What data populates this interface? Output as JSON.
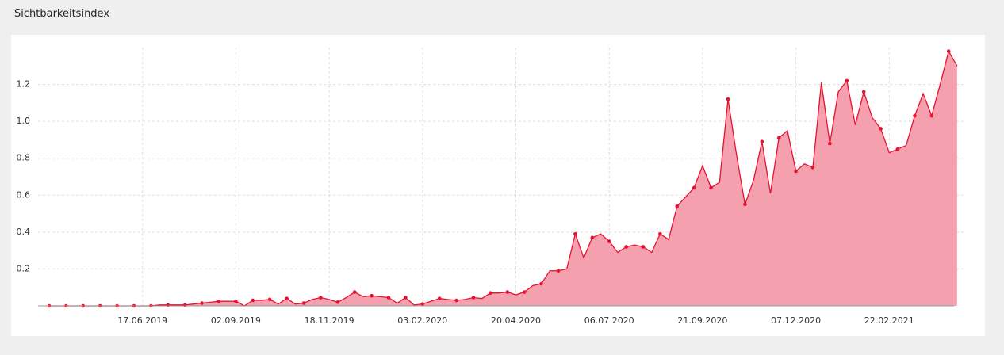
{
  "chart_data": {
    "type": "area",
    "title": "Sichtbarkeitsindex",
    "x": [
      "01.04.2019",
      "08.04.2019",
      "15.04.2019",
      "22.04.2019",
      "29.04.2019",
      "06.05.2019",
      "13.05.2019",
      "20.05.2019",
      "27.05.2019",
      "03.06.2019",
      "10.06.2019",
      "17.06.2019",
      "24.06.2019",
      "01.07.2019",
      "08.07.2019",
      "15.07.2019",
      "22.07.2019",
      "29.07.2019",
      "05.08.2019",
      "12.08.2019",
      "19.08.2019",
      "26.08.2019",
      "02.09.2019",
      "09.09.2019",
      "16.09.2019",
      "23.09.2019",
      "30.09.2019",
      "07.10.2019",
      "14.10.2019",
      "21.10.2019",
      "28.10.2019",
      "04.11.2019",
      "11.11.2019",
      "18.11.2019",
      "25.11.2019",
      "02.12.2019",
      "09.12.2019",
      "16.12.2019",
      "23.12.2019",
      "30.12.2019",
      "06.01.2020",
      "13.01.2020",
      "20.01.2020",
      "27.01.2020",
      "03.02.2020",
      "10.02.2020",
      "17.02.2020",
      "24.02.2020",
      "02.03.2020",
      "09.03.2020",
      "16.03.2020",
      "23.03.2020",
      "30.03.2020",
      "06.04.2020",
      "13.04.2020",
      "20.04.2020",
      "27.04.2020",
      "04.05.2020",
      "11.05.2020",
      "18.05.2020",
      "25.05.2020",
      "01.06.2020",
      "08.06.2020",
      "15.06.2020",
      "22.06.2020",
      "29.06.2020",
      "06.07.2020",
      "13.07.2020",
      "20.07.2020",
      "27.07.2020",
      "03.08.2020",
      "10.08.2020",
      "17.08.2020",
      "24.08.2020",
      "31.08.2020",
      "07.09.2020",
      "14.09.2020",
      "21.09.2020",
      "28.09.2020",
      "05.10.2020",
      "12.10.2020",
      "19.10.2020",
      "26.10.2020",
      "02.11.2020",
      "09.11.2020",
      "16.11.2020",
      "23.11.2020",
      "30.11.2020",
      "07.12.2020",
      "14.12.2020",
      "21.12.2020",
      "28.12.2020",
      "04.01.2021",
      "11.01.2021",
      "18.01.2021",
      "25.01.2021",
      "01.02.2021",
      "08.02.2021",
      "15.02.2021",
      "22.02.2021",
      "01.03.2021",
      "08.03.2021",
      "15.03.2021",
      "22.03.2021",
      "29.03.2021",
      "05.04.2021",
      "12.04.2021",
      "19.04.2021"
    ],
    "values": [
      0,
      0,
      0,
      0,
      0,
      0,
      0,
      0,
      0,
      0,
      0,
      0,
      0,
      0.005,
      0.005,
      0.005,
      0.005,
      0.01,
      0.015,
      0.02,
      0.025,
      0.025,
      0.025,
      0,
      0.03,
      0.03,
      0.035,
      0.01,
      0.04,
      0.01,
      0.015,
      0.035,
      0.045,
      0.035,
      0.02,
      0.045,
      0.075,
      0.05,
      0.055,
      0.05,
      0.045,
      0.015,
      0.045,
      0.005,
      0.01,
      0.025,
      0.04,
      0.035,
      0.03,
      0.035,
      0.045,
      0.04,
      0.07,
      0.07,
      0.075,
      0.06,
      0.075,
      0.11,
      0.12,
      0.19,
      0.19,
      0.2,
      0.39,
      0.26,
      0.37,
      0.39,
      0.35,
      0.29,
      0.32,
      0.33,
      0.32,
      0.29,
      0.39,
      0.36,
      0.54,
      0.59,
      0.64,
      0.76,
      0.64,
      0.67,
      1.12,
      0.82,
      0.55,
      0.68,
      0.89,
      0.61,
      0.91,
      0.95,
      0.73,
      0.77,
      0.75,
      1.21,
      0.88,
      1.16,
      1.22,
      0.98,
      1.16,
      1.02,
      0.96,
      0.83,
      0.85,
      0.87,
      1.03,
      1.15,
      1.03,
      1.2,
      1.38,
      1.3
    ],
    "color": "#e8122f",
    "fill": "#f4a0ae",
    "xticks": [
      "17.06.2019",
      "02.09.2019",
      "18.11.2019",
      "03.02.2020",
      "20.04.2020",
      "06.07.2020",
      "21.09.2020",
      "07.12.2020",
      "22.02.2021"
    ],
    "ylim": [
      0,
      1.4
    ],
    "yticks": [
      0.2,
      0.4,
      0.6,
      0.8,
      {
        "value": 1,
        "label": "1.0"
      },
      1.2
    ],
    "grid": true
  }
}
